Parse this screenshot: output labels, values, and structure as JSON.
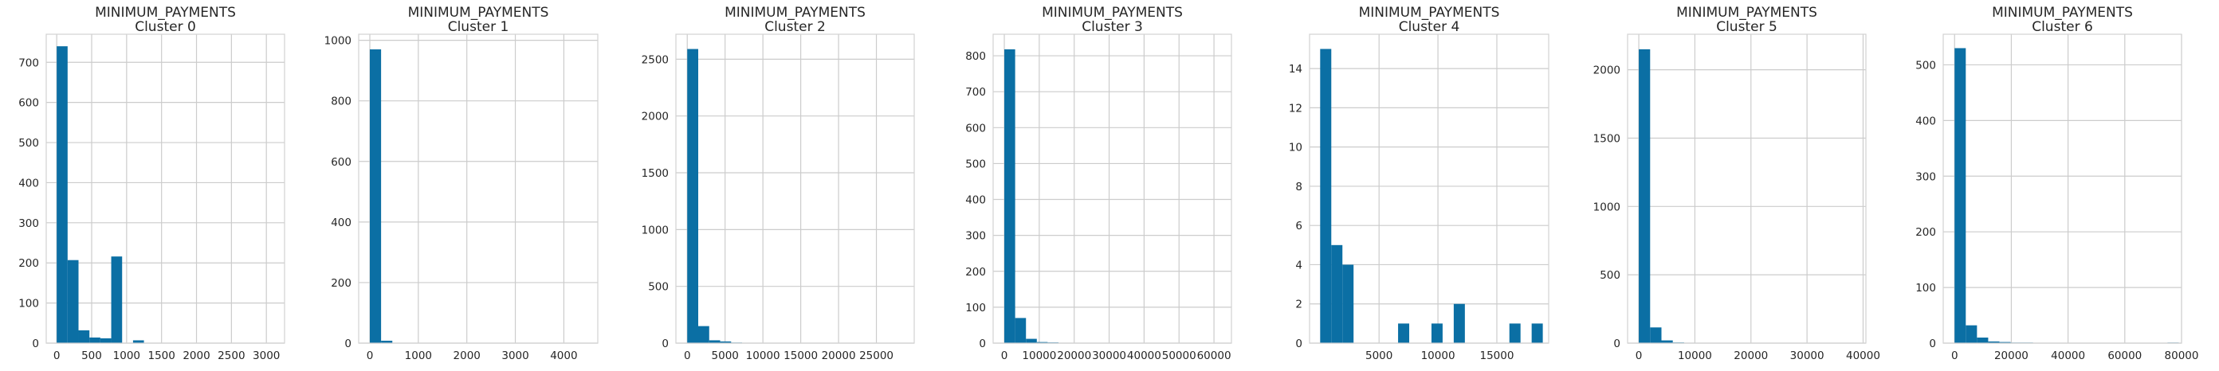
{
  "chart_data": [
    {
      "type": "bar",
      "title": "MINIMUM_PAYMENTS",
      "subtitle": "Cluster 0",
      "bin_width": 156,
      "xlim": [
        -150,
        3260
      ],
      "ylim": [
        0,
        770
      ],
      "xticks": [
        "0",
        "500",
        "1000",
        "1500",
        "2000",
        "2500",
        "3000"
      ],
      "xtick_values": [
        0,
        500,
        1000,
        1500,
        2000,
        2500,
        3000
      ],
      "yticks": [
        "0",
        "100",
        "200",
        "300",
        "400",
        "500",
        "600",
        "700"
      ],
      "ytick_values": [
        0,
        100,
        200,
        300,
        400,
        500,
        600,
        700
      ],
      "bins": [
        0,
        156,
        312,
        468,
        624,
        780,
        936,
        1092,
        1248,
        1404,
        1560,
        1716,
        1872,
        2028,
        2184,
        2340,
        2496,
        2652,
        2808,
        2964
      ],
      "values": [
        740,
        207,
        32,
        14,
        12,
        216,
        0,
        7,
        0,
        0,
        0,
        0,
        0,
        0,
        0,
        0,
        0,
        0,
        0,
        1
      ],
      "grid": true
    },
    {
      "type": "bar",
      "title": "MINIMUM_PAYMENTS",
      "subtitle": "Cluster 1",
      "bin_width": 232,
      "xlim": [
        -230,
        4700
      ],
      "ylim": [
        0,
        1020
      ],
      "xticks": [
        "0",
        "1000",
        "2000",
        "3000",
        "4000"
      ],
      "xtick_values": [
        0,
        1000,
        2000,
        3000,
        4000
      ],
      "yticks": [
        "0",
        "200",
        "400",
        "600",
        "800",
        "1000"
      ],
      "ytick_values": [
        0,
        200,
        400,
        600,
        800,
        1000
      ],
      "bins": [
        0,
        232,
        464,
        696,
        928,
        1160,
        1392,
        1624,
        1856,
        2088,
        2320,
        2552,
        2784,
        3016,
        3248,
        3480,
        3712,
        3944,
        4176,
        4408
      ],
      "values": [
        970,
        8,
        0,
        0,
        0,
        0,
        0,
        0,
        0,
        0,
        0,
        0,
        0,
        0,
        0,
        0,
        0,
        0,
        0,
        1
      ],
      "grid": true
    },
    {
      "type": "bar",
      "title": "MINIMUM_PAYMENTS",
      "subtitle": "Cluster 2",
      "bin_width": 1450,
      "xlim": [
        -1500,
        30000
      ],
      "ylim": [
        0,
        2720
      ],
      "xticks": [
        "0",
        "5000",
        "10000",
        "15000",
        "20000",
        "25000"
      ],
      "xtick_values": [
        0,
        5000,
        10000,
        15000,
        20000,
        25000
      ],
      "yticks": [
        "0",
        "500",
        "1000",
        "1500",
        "2000",
        "2500"
      ],
      "ytick_values": [
        0,
        500,
        1000,
        1500,
        2000,
        2500
      ],
      "bins": [
        0,
        1450,
        2900,
        4350,
        5800,
        7250,
        8700,
        10150,
        11600,
        13050,
        14500,
        15950,
        17400,
        18850,
        20300,
        21750,
        23200,
        24650,
        26100,
        27550
      ],
      "values": [
        2590,
        150,
        25,
        15,
        5,
        3,
        2,
        1,
        1,
        1,
        0,
        0,
        0,
        0,
        0,
        0,
        0,
        0,
        0,
        1
      ],
      "grid": true
    },
    {
      "type": "bar",
      "title": "MINIMUM_PAYMENTS",
      "subtitle": "Cluster 3",
      "bin_width": 3100,
      "xlim": [
        -3200,
        65000
      ],
      "ylim": [
        0,
        860
      ],
      "xticks": [
        "0",
        "10000",
        "20000",
        "30000",
        "40000",
        "50000",
        "60000"
      ],
      "xtick_values": [
        0,
        10000,
        20000,
        30000,
        40000,
        50000,
        60000
      ],
      "yticks": [
        "0",
        "100",
        "200",
        "300",
        "400",
        "500",
        "600",
        "700",
        "800"
      ],
      "ytick_values": [
        0,
        100,
        200,
        300,
        400,
        500,
        600,
        700,
        800
      ],
      "bins": [
        0,
        3100,
        6200,
        9300,
        12400,
        15500,
        18600,
        21700,
        24800,
        27900,
        31000,
        34100,
        37200,
        40300,
        43400,
        46500,
        49600,
        52700,
        55800,
        58900
      ],
      "values": [
        818,
        70,
        12,
        3,
        2,
        1,
        1,
        0,
        0,
        0,
        0,
        0,
        0,
        0,
        0,
        0,
        0,
        0,
        0,
        1
      ],
      "grid": true
    },
    {
      "type": "bar",
      "title": "MINIMUM_PAYMENTS",
      "subtitle": "Cluster 4",
      "bin_width": 945,
      "xlim": [
        -900,
        19400
      ],
      "ylim": [
        0,
        15.75
      ],
      "xticks": [
        "5000",
        "10000",
        "15000"
      ],
      "xtick_values": [
        5000,
        10000,
        15000
      ],
      "yticks": [
        "0",
        "2",
        "4",
        "6",
        "8",
        "10",
        "12",
        "14"
      ],
      "ytick_values": [
        0,
        2,
        4,
        6,
        8,
        10,
        12,
        14
      ],
      "bins": [
        0,
        945,
        1890,
        2835,
        3780,
        4725,
        5670,
        6615,
        7560,
        8505,
        9450,
        10395,
        11340,
        12285,
        13230,
        14175,
        15120,
        16065,
        17010,
        17955
      ],
      "values": [
        15,
        5,
        4,
        0,
        0,
        0,
        0,
        1,
        0,
        0,
        1,
        0,
        2,
        0,
        0,
        0,
        0,
        1,
        0,
        1
      ],
      "grid": true
    },
    {
      "type": "bar",
      "title": "MINIMUM_PAYMENTS",
      "subtitle": "Cluster 5",
      "bin_width": 2020,
      "xlim": [
        -2000,
        40500
      ],
      "ylim": [
        0,
        2260
      ],
      "xticks": [
        "0",
        "10000",
        "20000",
        "30000",
        "40000"
      ],
      "xtick_values": [
        0,
        10000,
        20000,
        30000,
        40000
      ],
      "yticks": [
        "0",
        "500",
        "1000",
        "1500",
        "2000"
      ],
      "ytick_values": [
        0,
        500,
        1000,
        1500,
        2000
      ],
      "bins": [
        0,
        2020,
        4040,
        6060,
        8080,
        10100,
        12120,
        14140,
        16160,
        18180,
        20200,
        22220,
        24240,
        26260,
        28280,
        30300,
        32320,
        34340,
        36360,
        38380
      ],
      "values": [
        2150,
        115,
        20,
        5,
        3,
        2,
        1,
        0,
        0,
        0,
        0,
        0,
        0,
        0,
        0,
        0,
        0,
        0,
        0,
        1
      ],
      "grid": true
    },
    {
      "type": "bar",
      "title": "MINIMUM_PAYMENTS",
      "subtitle": "Cluster 6",
      "bin_width": 3950,
      "xlim": [
        -4000,
        80000
      ],
      "ylim": [
        0,
        555
      ],
      "xticks": [
        "0",
        "20000",
        "40000",
        "60000",
        "80000"
      ],
      "xtick_values": [
        0,
        20000,
        40000,
        60000,
        80000
      ],
      "yticks": [
        "0",
        "100",
        "200",
        "300",
        "400",
        "500"
      ],
      "ytick_values": [
        0,
        100,
        200,
        300,
        400,
        500
      ],
      "bins": [
        0,
        3950,
        7900,
        11850,
        15800,
        19750,
        23700,
        27650,
        31600,
        35550,
        39500,
        43450,
        47400,
        51350,
        55300,
        59250,
        63200,
        67150,
        71100,
        75050
      ],
      "values": [
        530,
        32,
        10,
        3,
        2,
        1,
        1,
        0,
        0,
        0,
        0,
        0,
        0,
        0,
        0,
        0,
        0,
        0,
        0,
        1
      ],
      "grid": true
    }
  ],
  "colors": {
    "bar": "#0b6fa4",
    "grid": "#cccccc",
    "spine": "#d2d2d2",
    "text": "#262626"
  }
}
